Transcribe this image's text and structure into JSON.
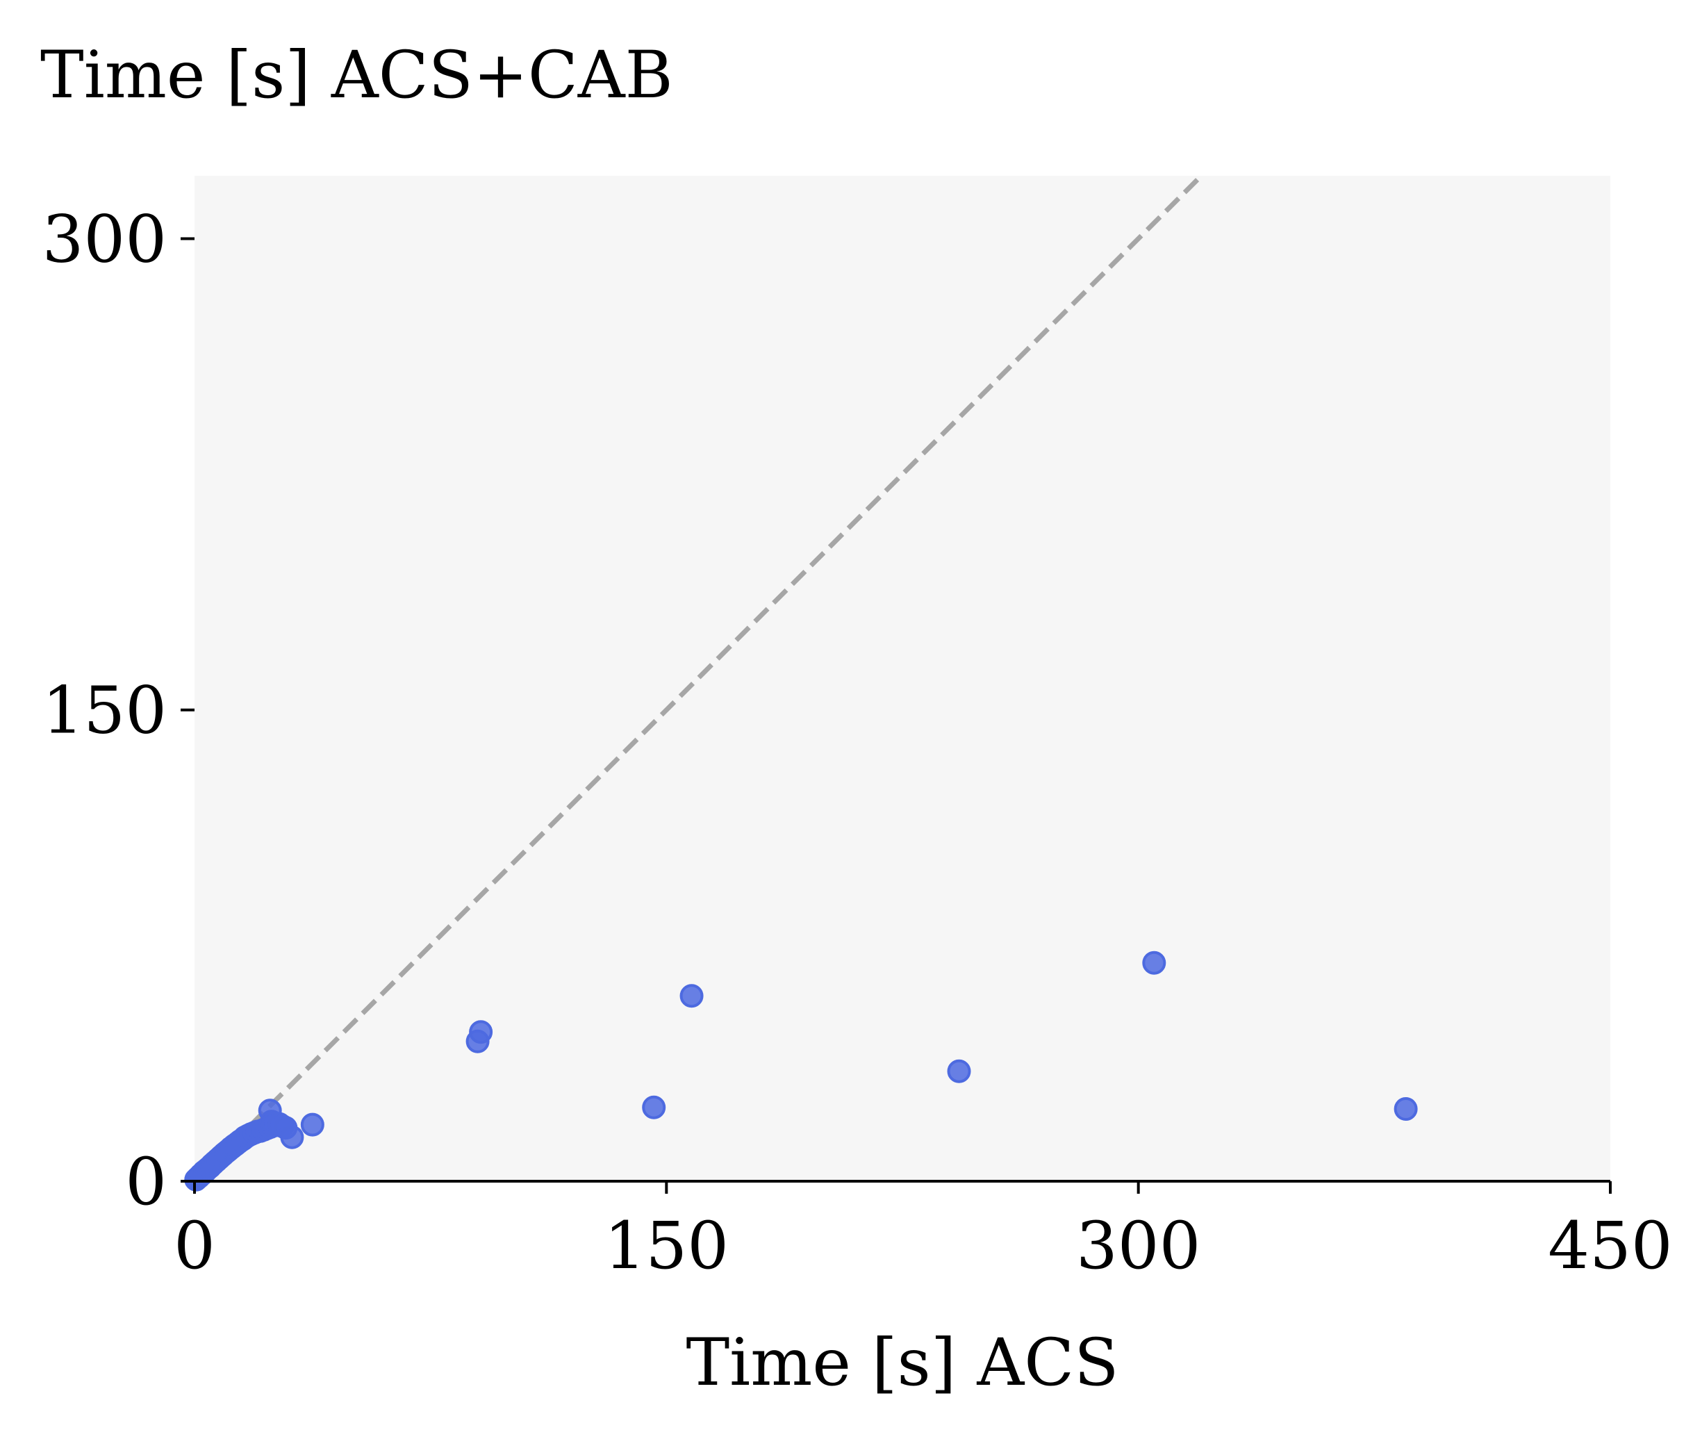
{
  "chart_data": {
    "type": "scatter",
    "title": "Time [s] ACS+CAB",
    "xlabel": "Time [s] ACS",
    "ylabel": "",
    "xlim": [
      0,
      450
    ],
    "ylim": [
      0,
      320
    ],
    "xticks": [
      0,
      150,
      300,
      450
    ],
    "xtick_labels": [
      "0",
      "150",
      "300",
      "450"
    ],
    "yticks": [
      0,
      150,
      300
    ],
    "ytick_labels": [
      "0",
      "150",
      "300"
    ],
    "grid": false,
    "legend": "none",
    "reference_line": {
      "style": "dashed",
      "slope": 1,
      "intercept": 0
    },
    "series": [
      {
        "points": [
          [
            0.5,
            0.5
          ],
          [
            1,
            1
          ],
          [
            1.5,
            1.4
          ],
          [
            2,
            2
          ],
          [
            2.5,
            2.3
          ],
          [
            3,
            3
          ],
          [
            3.5,
            3.2
          ],
          [
            4,
            3.8
          ],
          [
            4.5,
            4.2
          ],
          [
            5,
            4.6
          ],
          [
            5.5,
            5.2
          ],
          [
            6,
            5.6
          ],
          [
            6.5,
            6.1
          ],
          [
            7,
            6.5
          ],
          [
            7.5,
            7
          ],
          [
            8,
            7.4
          ],
          [
            8.5,
            7.9
          ],
          [
            9,
            8.3
          ],
          [
            9.5,
            8.8
          ],
          [
            10,
            9.2
          ],
          [
            10.5,
            9.6
          ],
          [
            11,
            10
          ],
          [
            11.5,
            10.5
          ],
          [
            12,
            10.8
          ],
          [
            12.5,
            11.3
          ],
          [
            13,
            11.6
          ],
          [
            13.5,
            12
          ],
          [
            14,
            12.4
          ],
          [
            14.5,
            12.8
          ],
          [
            15,
            13.1
          ],
          [
            15.5,
            13.4
          ],
          [
            16,
            14
          ],
          [
            16.5,
            14.2
          ],
          [
            17,
            14.5
          ],
          [
            18,
            15
          ],
          [
            19,
            15.4
          ],
          [
            20,
            15.8
          ],
          [
            21,
            16
          ],
          [
            22,
            16.4
          ],
          [
            23,
            16.8
          ],
          [
            24,
            17.2
          ],
          [
            25,
            17.6
          ],
          [
            26,
            18
          ],
          [
            27,
            17.8
          ],
          [
            28,
            17.5
          ],
          [
            24,
            22.5
          ],
          [
            24.5,
            19
          ],
          [
            25,
            18.5
          ],
          [
            27,
            18.2
          ],
          [
            29,
            17
          ],
          [
            31,
            14
          ],
          [
            37.5,
            18
          ],
          [
            90,
            44.5
          ],
          [
            91,
            47.5
          ],
          [
            146,
            23.5
          ],
          [
            158,
            59
          ],
          [
            243,
            35
          ],
          [
            305,
            69.5
          ],
          [
            385,
            23
          ]
        ]
      }
    ],
    "colors": {
      "points": "#4d6ae0",
      "reference_line": "#a6a6a6",
      "plot_background": "#f6f6f6",
      "axis": "#000000"
    }
  }
}
